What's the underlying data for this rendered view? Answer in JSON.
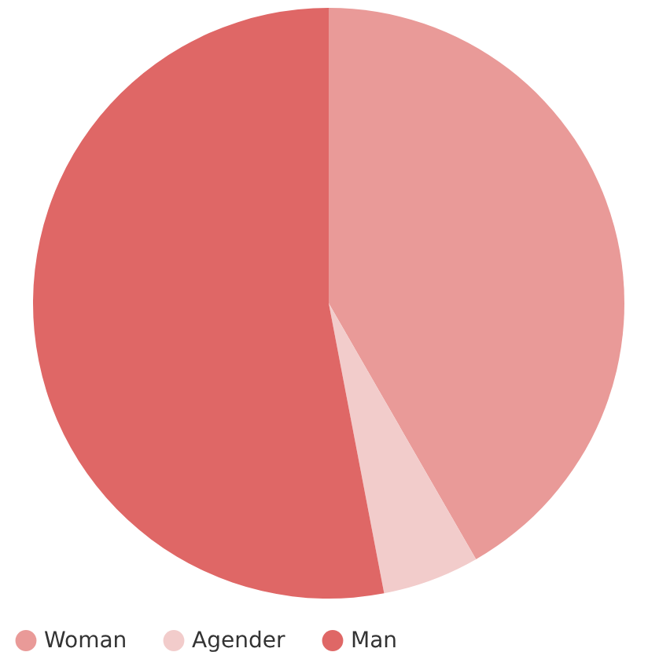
{
  "chart_data": {
    "type": "pie",
    "categories": [
      "Woman",
      "Agender",
      "Man"
    ],
    "values": [
      41.7,
      5.3,
      53.0
    ],
    "colors": [
      "#e99a98",
      "#f2cccb",
      "#df6766"
    ],
    "legend": "bottom"
  }
}
